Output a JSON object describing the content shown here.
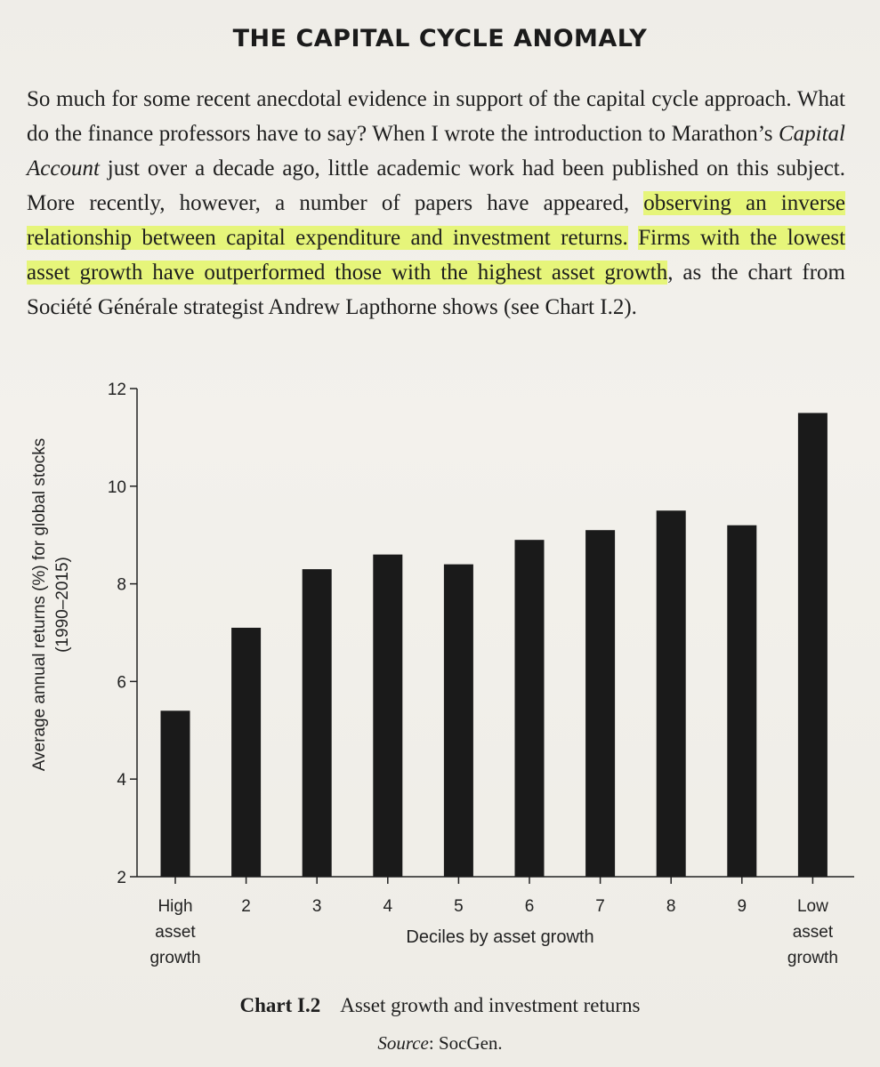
{
  "heading": "THE CAPITAL CYCLE ANOMALY",
  "paragraph": {
    "p1": "So much for some recent anecdotal evidence in support of the capital cycle approach. What do the finance professors have to say? When I wrote the introduction to Marathon’s ",
    "italic": "Capital Account",
    "p2": " just over a decade ago, little academic work had been published on this subject. More recently, however, a number of papers have appeared, ",
    "highlight1": "observing an inverse relationship between capital expenditure and investment returns.",
    "p3": " ",
    "highlight2": "Firms with the lowest asset growth have outperformed those with the highest asset growth",
    "p4": ", as the chart from Société Générale strategist Andrew Lapthorne shows (see Chart I.2)."
  },
  "chart_data": {
    "type": "bar",
    "categories": [
      "High asset growth",
      "2",
      "3",
      "4",
      "5",
      "6",
      "7",
      "8",
      "9",
      "Low asset growth"
    ],
    "category_lines": [
      [
        "High",
        "asset",
        "growth"
      ],
      [
        "2"
      ],
      [
        "3"
      ],
      [
        "4"
      ],
      [
        "5"
      ],
      [
        "6"
      ],
      [
        "7"
      ],
      [
        "8"
      ],
      [
        "9"
      ],
      [
        "Low",
        "asset",
        "growth"
      ]
    ],
    "values": [
      5.4,
      7.1,
      8.3,
      8.6,
      8.4,
      8.9,
      9.1,
      9.5,
      9.2,
      11.5
    ],
    "xlabel": "Deciles by asset growth",
    "ylabel_lines": [
      "Average annual returns (%) for global stocks",
      "(1990–2015)"
    ],
    "ylim": [
      2,
      12
    ],
    "yticks": [
      2,
      4,
      6,
      8,
      10,
      12
    ],
    "grid": false,
    "bar_color": "#1a1a1a"
  },
  "caption": {
    "number": "Chart I.2",
    "title": "Asset growth and investment returns"
  },
  "source": {
    "label": "Source",
    "text": ": SocGen."
  },
  "colors": {
    "highlight": "#e6f57a",
    "paper": "#f2f0eb",
    "ink": "#1e1e1e"
  }
}
